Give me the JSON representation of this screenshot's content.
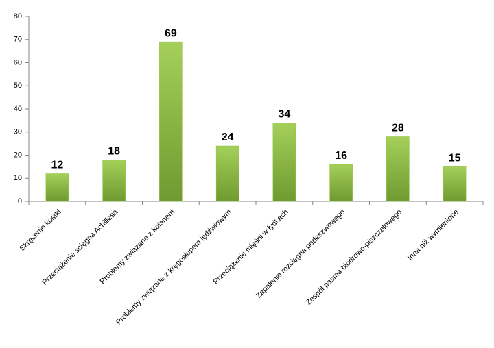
{
  "chart_data": {
    "type": "bar",
    "categories": [
      "Skręcenie kostki",
      "Przeciążenie ścięgna Achillesa",
      "Problemy związane z kolanem",
      "Problemy związane z kręgosłupem lędźwiowym",
      "Przeciążenie mięśni w łydkach",
      "Zapalenie rozcięgna podeszwowego",
      "Zespół pasma biodrowo-piszczelowego",
      "Inna niż wymienione"
    ],
    "values": [
      12,
      18,
      69,
      24,
      34,
      16,
      28,
      15
    ],
    "color": "#8cbf3f",
    "ylim": [
      0,
      80
    ],
    "yticks": [
      0,
      10,
      20,
      30,
      40,
      50,
      60,
      70,
      80
    ],
    "grid": false
  }
}
